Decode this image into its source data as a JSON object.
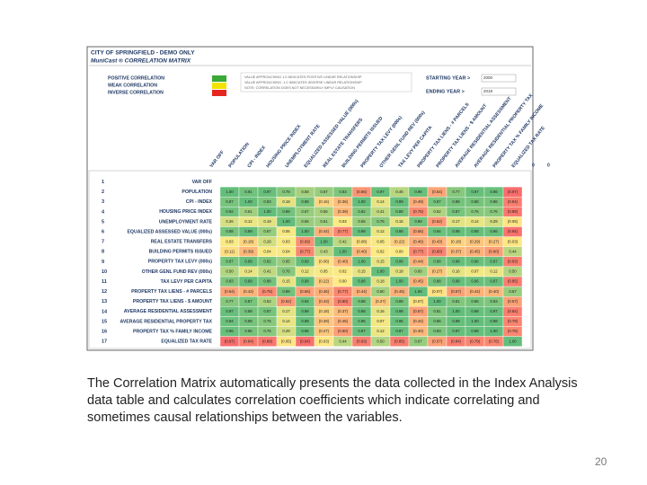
{
  "screenshot": {
    "title": "CITY OF SPRINGFIELD - DEMO ONLY",
    "subtitle": "MuniCast ® CORRELATION MATRIX",
    "legend": [
      {
        "label": "POSITIVE CORRELATION",
        "color": "#3aa935"
      },
      {
        "label": "WEAK CORRELATION",
        "color": "#f2e400"
      },
      {
        "label": "INVERSE CORRELATION",
        "color": "#e5261f"
      }
    ],
    "notes": [
      "VALUE APPROACHING 1.0 INDICATES POSITIVE LINEAR RELATIONSHIP",
      "VALUE APPROACHING -1.0 INDICATES INVERSE LINEAR RELATIONSHIP",
      "NOTE: CORRELATION DOES NOT NECESSARILY IMPLY CAUSATION"
    ],
    "starting_year": {
      "label": "STARTING YEAR >",
      "value": "2000"
    },
    "ending_year": {
      "label": "ENDING YEAR >",
      "value": "2018"
    },
    "trailing_headers": [
      "0",
      "0"
    ],
    "table": {
      "row_numbers": [
        "1",
        "2",
        "3",
        "4",
        "5",
        "6",
        "7",
        "8",
        "9",
        "10",
        "11",
        "12",
        "13",
        "14",
        "15",
        "16",
        "17"
      ],
      "variables": [
        "VAR OFF",
        "POPULATION",
        "CPI - INDEX",
        "HOUSING PRICE INDEX",
        "UNEMPLOYMENT RATE",
        "EQUALIZED ASSESSED VALUE (000s)",
        "REAL ESTATE TRANSFERS",
        "BUILDING PERMITS ISSUED",
        "PROPERTY TAX LEVY (000s)",
        "OTHER GENL FUND REV (000s)",
        "TAX LEVY PER CAPITA",
        "PROPERTY TAX LIENS - # PARCELS",
        "PROPERTY TAX LIENS - $ AMOUNT",
        "AVERAGE RESIDENTIAL ASSESSMENT",
        "AVERAGE RESIDENTIAL PROPERTY TAX",
        "PROPERTY TAX % FAMILY INCOME",
        "EQUALIZED TAX RATE"
      ],
      "rows": [
        [],
        [
          "1.00",
          "0.91",
          "0.97",
          "0.78",
          "0.58",
          "0.67",
          "0.83",
          "(0.66)",
          "0.97",
          "0.46",
          "0.96",
          "(0.54)",
          "0.77",
          "0.97",
          "0.96",
          "(0.97)"
        ],
        [
          "0.87",
          "1.00",
          "0.83",
          "0.18",
          "0.88",
          "(0.16)",
          "(0.36)",
          "1.00",
          "0.14",
          "0.99",
          "(0.49)",
          "0.87",
          "0.88",
          "0.88",
          "0.86",
          "(0.84)"
        ],
        [
          "0.92",
          "0.61",
          "1.00",
          "0.89",
          "0.67",
          "0.56",
          "(0.39)",
          "0.82",
          "0.41",
          "0.88",
          "(0.75)",
          "0.52",
          "0.87",
          "0.76",
          "0.76",
          "(0.89)"
        ],
        [
          "0.26",
          "0.12",
          "0.19",
          "1.00",
          "0.66",
          "0.61",
          "0.03",
          "0.65",
          "0.76",
          "0.15",
          "0.89",
          "(0.62)",
          "0.17",
          "0.14",
          "0.29",
          "(0.05)"
        ],
        [
          "0.88",
          "0.99",
          "0.67",
          "0.06",
          "1.00",
          "(0.44)",
          "(0.77)",
          "0.99",
          "0.12",
          "0.98",
          "(0.56)",
          "0.94",
          "0.98",
          "0.98",
          "0.96",
          "(0.94)"
        ],
        [
          "0.03",
          "(0.18)",
          "0.28",
          "0.03",
          "(0.69)",
          "1.00",
          "0.42",
          "(0.08)",
          "0.05",
          "(0.22)",
          "(0.46)",
          "(0.43)",
          "(0.18)",
          "(0.29)",
          "(0.27)",
          "(0.03)"
        ],
        [
          "(0.11)",
          "(0.39)",
          "0.04",
          "0.04",
          "(0.77)",
          "0.43",
          "1.00",
          "(0.40)",
          "0.02",
          "0.00",
          "(0.77)",
          "(0.80)",
          "(0.37)",
          "(0.45)",
          "(0.60)",
          "0.44"
        ],
        [
          "0.87",
          "0.99",
          "0.82",
          "0.65",
          "0.99",
          "(0.08)",
          "(0.40)",
          "1.00",
          "0.15",
          "0.98",
          "(0.44)",
          "0.88",
          "0.98",
          "0.96",
          "0.97",
          "(0.83)"
        ],
        [
          "0.50",
          "0.14",
          "0.41",
          "0.76",
          "0.12",
          "0.05",
          "0.02",
          "0.15",
          "1.00",
          "0.18",
          "0.60",
          "(0.27)",
          "0.16",
          "0.07",
          "0.12",
          "0.50"
        ],
        [
          "0.83",
          "0.99",
          "0.88",
          "0.15",
          "0.98",
          "(0.22)",
          "0.00",
          "0.98",
          "0.18",
          "1.00",
          "(0.45)",
          "0.88",
          "0.98",
          "0.96",
          "0.97",
          "(0.85)"
        ],
        [
          "(0.54)",
          "(0.42)",
          "(0.75)",
          "0.89",
          "(0.56)",
          "(0.46)",
          "(0.77)",
          "(0.44)",
          "0.60",
          "(0.45)",
          "1.00",
          "(0.07)",
          "(0.57)",
          "(0.44)",
          "(0.40)",
          "0.67"
        ],
        [
          "0.77",
          "0.87",
          "0.52",
          "(0.62)",
          "0.94",
          "(0.43)",
          "(0.80)",
          "0.88",
          "(0.27)",
          "0.88",
          "(0.07)",
          "1.00",
          "0.81",
          "0.86",
          "0.83",
          "(0.57)"
        ],
        [
          "0.97",
          "0.88",
          "0.87",
          "0.17",
          "0.98",
          "(0.18)",
          "(0.37)",
          "0.98",
          "0.16",
          "0.98",
          "(0.57)",
          "0.81",
          "1.00",
          "0.98",
          "0.97",
          "(0.84)"
        ],
        [
          "0.94",
          "0.88",
          "0.76",
          "0.14",
          "0.98",
          "(0.29)",
          "(0.45)",
          "0.96",
          "0.07",
          "0.96",
          "(0.44)",
          "0.86",
          "0.98",
          "1.00",
          "0.98",
          "(0.79)"
        ],
        [
          "0.96",
          "0.86",
          "0.76",
          "0.29",
          "0.96",
          "(0.27)",
          "(0.60)",
          "0.97",
          "0.12",
          "0.97",
          "(0.40)",
          "0.83",
          "0.97",
          "0.98",
          "1.00",
          "(0.76)"
        ],
        [
          "(0.97)",
          "(0.84)",
          "(0.89)",
          "(0.05)",
          "(0.94)",
          "(0.03)",
          "0.44",
          "(0.83)",
          "0.50",
          "(0.85)",
          "0.67",
          "(0.57)",
          "(0.84)",
          "(0.79)",
          "(0.76)",
          "1.00"
        ]
      ]
    }
  },
  "caption": "The Correlation Matrix automatically presents the data collected in the Index Analysis data table and calculates correlation coefficients which indicate correlating and sometimes causal relationships between the variables.",
  "page_number": "20"
}
